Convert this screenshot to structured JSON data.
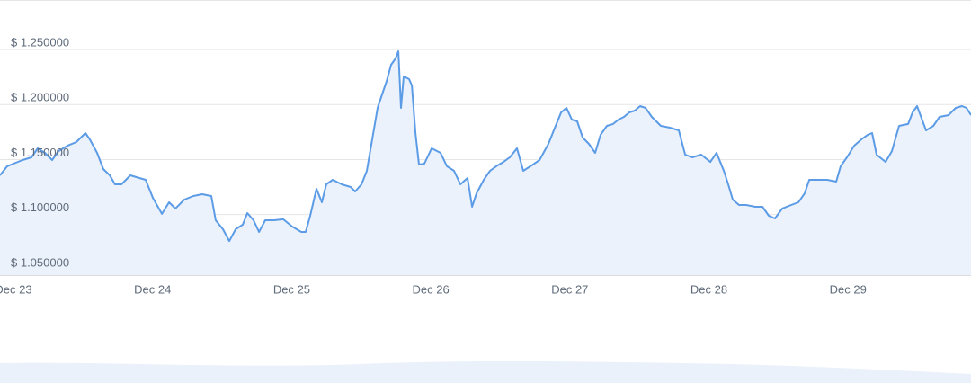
{
  "chart_data": {
    "type": "area-line",
    "color": "#5c9ce6",
    "fill_color": "#ebf2fc",
    "grid": true,
    "xlim": [
      22.903,
      29.884
    ],
    "ylim": [
      1.045,
      1.295
    ],
    "xticks": [
      {
        "value": 23,
        "label": "Dec 23"
      },
      {
        "value": 24,
        "label": "Dec 24"
      },
      {
        "value": 25,
        "label": "Dec 25"
      },
      {
        "value": 26,
        "label": "Dec 26"
      },
      {
        "value": 27,
        "label": "Dec 27"
      },
      {
        "value": 28,
        "label": "Dec 28"
      },
      {
        "value": 29,
        "label": "Dec 29"
      }
    ],
    "yticks": [
      {
        "value": 1.05,
        "label": "$ 1.050000"
      },
      {
        "value": 1.1,
        "label": "$ 1.100000"
      },
      {
        "value": 1.15,
        "label": "$ 1.150000"
      },
      {
        "value": 1.2,
        "label": "$ 1.200000"
      },
      {
        "value": 1.25,
        "label": "$ 1.250000"
      }
    ],
    "x": [
      22.903,
      22.955,
      23.0,
      23.065,
      23.129,
      23.174,
      23.226,
      23.278,
      23.323,
      23.388,
      23.452,
      23.517,
      23.549,
      23.601,
      23.646,
      23.692,
      23.73,
      23.776,
      23.84,
      23.905,
      23.95,
      24.002,
      24.067,
      24.118,
      24.164,
      24.228,
      24.293,
      24.357,
      24.422,
      24.454,
      24.506,
      24.551,
      24.597,
      24.648,
      24.681,
      24.726,
      24.765,
      24.81,
      24.875,
      24.939,
      25.004,
      25.069,
      25.101,
      25.133,
      25.178,
      25.217,
      25.249,
      25.295,
      25.359,
      25.424,
      25.456,
      25.502,
      25.54,
      25.579,
      25.618,
      25.65,
      25.683,
      25.715,
      25.747,
      25.767,
      25.786,
      25.805,
      25.844,
      25.864,
      25.89,
      25.915,
      25.954,
      26.006,
      26.07,
      26.116,
      26.167,
      26.213,
      26.264,
      26.297,
      26.329,
      26.381,
      26.426,
      26.471,
      26.523,
      26.568,
      26.62,
      26.665,
      26.717,
      26.782,
      26.846,
      26.898,
      26.937,
      26.976,
      27.014,
      27.053,
      27.092,
      27.137,
      27.182,
      27.221,
      27.266,
      27.311,
      27.35,
      27.389,
      27.428,
      27.467,
      27.505,
      27.544,
      27.589,
      27.654,
      27.719,
      27.783,
      27.829,
      27.88,
      27.945,
      28.01,
      28.055,
      28.107,
      28.139,
      28.171,
      28.216,
      28.268,
      28.333,
      28.385,
      28.43,
      28.475,
      28.527,
      28.591,
      28.643,
      28.688,
      28.721,
      28.785,
      28.85,
      28.915,
      28.947,
      28.992,
      29.044,
      29.096,
      29.141,
      29.173,
      29.205,
      29.27,
      29.315,
      29.367,
      29.432,
      29.464,
      29.496,
      29.561,
      29.613,
      29.658,
      29.723,
      29.774,
      29.819,
      29.852,
      29.884
    ],
    "values": [
      1.1357,
      1.1439,
      1.1463,
      1.1496,
      1.152,
      1.1602,
      1.1561,
      1.1496,
      1.1577,
      1.1626,
      1.1659,
      1.1741,
      1.1684,
      1.1561,
      1.1414,
      1.1357,
      1.1275,
      1.1275,
      1.1357,
      1.1332,
      1.1316,
      1.1153,
      1.1006,
      1.1112,
      1.1055,
      1.1136,
      1.1169,
      1.1185,
      1.1169,
      1.0948,
      1.0867,
      1.076,
      1.0867,
      1.0908,
      1.1014,
      1.0948,
      1.0842,
      1.0948,
      1.0948,
      1.0957,
      1.0891,
      1.0842,
      1.0842,
      1.0989,
      1.1234,
      1.1112,
      1.1275,
      1.1316,
      1.1275,
      1.1251,
      1.121,
      1.1275,
      1.1398,
      1.1684,
      1.197,
      1.2092,
      1.2215,
      1.2362,
      1.2419,
      1.2484,
      1.197,
      1.2256,
      1.2231,
      1.2174,
      1.1741,
      1.1455,
      1.1463,
      1.1602,
      1.1561,
      1.1439,
      1.1398,
      1.1275,
      1.1332,
      1.1071,
      1.1193,
      1.1316,
      1.1398,
      1.1439,
      1.1479,
      1.152,
      1.1602,
      1.1398,
      1.1439,
      1.1496,
      1.1643,
      1.1806,
      1.1929,
      1.197,
      1.1863,
      1.1847,
      1.17,
      1.1643,
      1.1561,
      1.1725,
      1.1806,
      1.1823,
      1.1863,
      1.1888,
      1.1929,
      1.1945,
      1.1986,
      1.197,
      1.1888,
      1.1806,
      1.179,
      1.1765,
      1.1545,
      1.152,
      1.1545,
      1.1479,
      1.1561,
      1.1398,
      1.1275,
      1.1136,
      1.1087,
      1.1087,
      1.1071,
      1.1071,
      1.0989,
      1.0965,
      1.1055,
      1.1087,
      1.1112,
      1.1193,
      1.1316,
      1.1316,
      1.1316,
      1.13,
      1.1439,
      1.152,
      1.1626,
      1.1684,
      1.1725,
      1.1741,
      1.1545,
      1.1479,
      1.1577,
      1.1806,
      1.1823,
      1.1929,
      1.1986,
      1.1765,
      1.1806,
      1.1888,
      1.1904,
      1.197,
      1.1986,
      1.197,
      1.1904
    ]
  }
}
